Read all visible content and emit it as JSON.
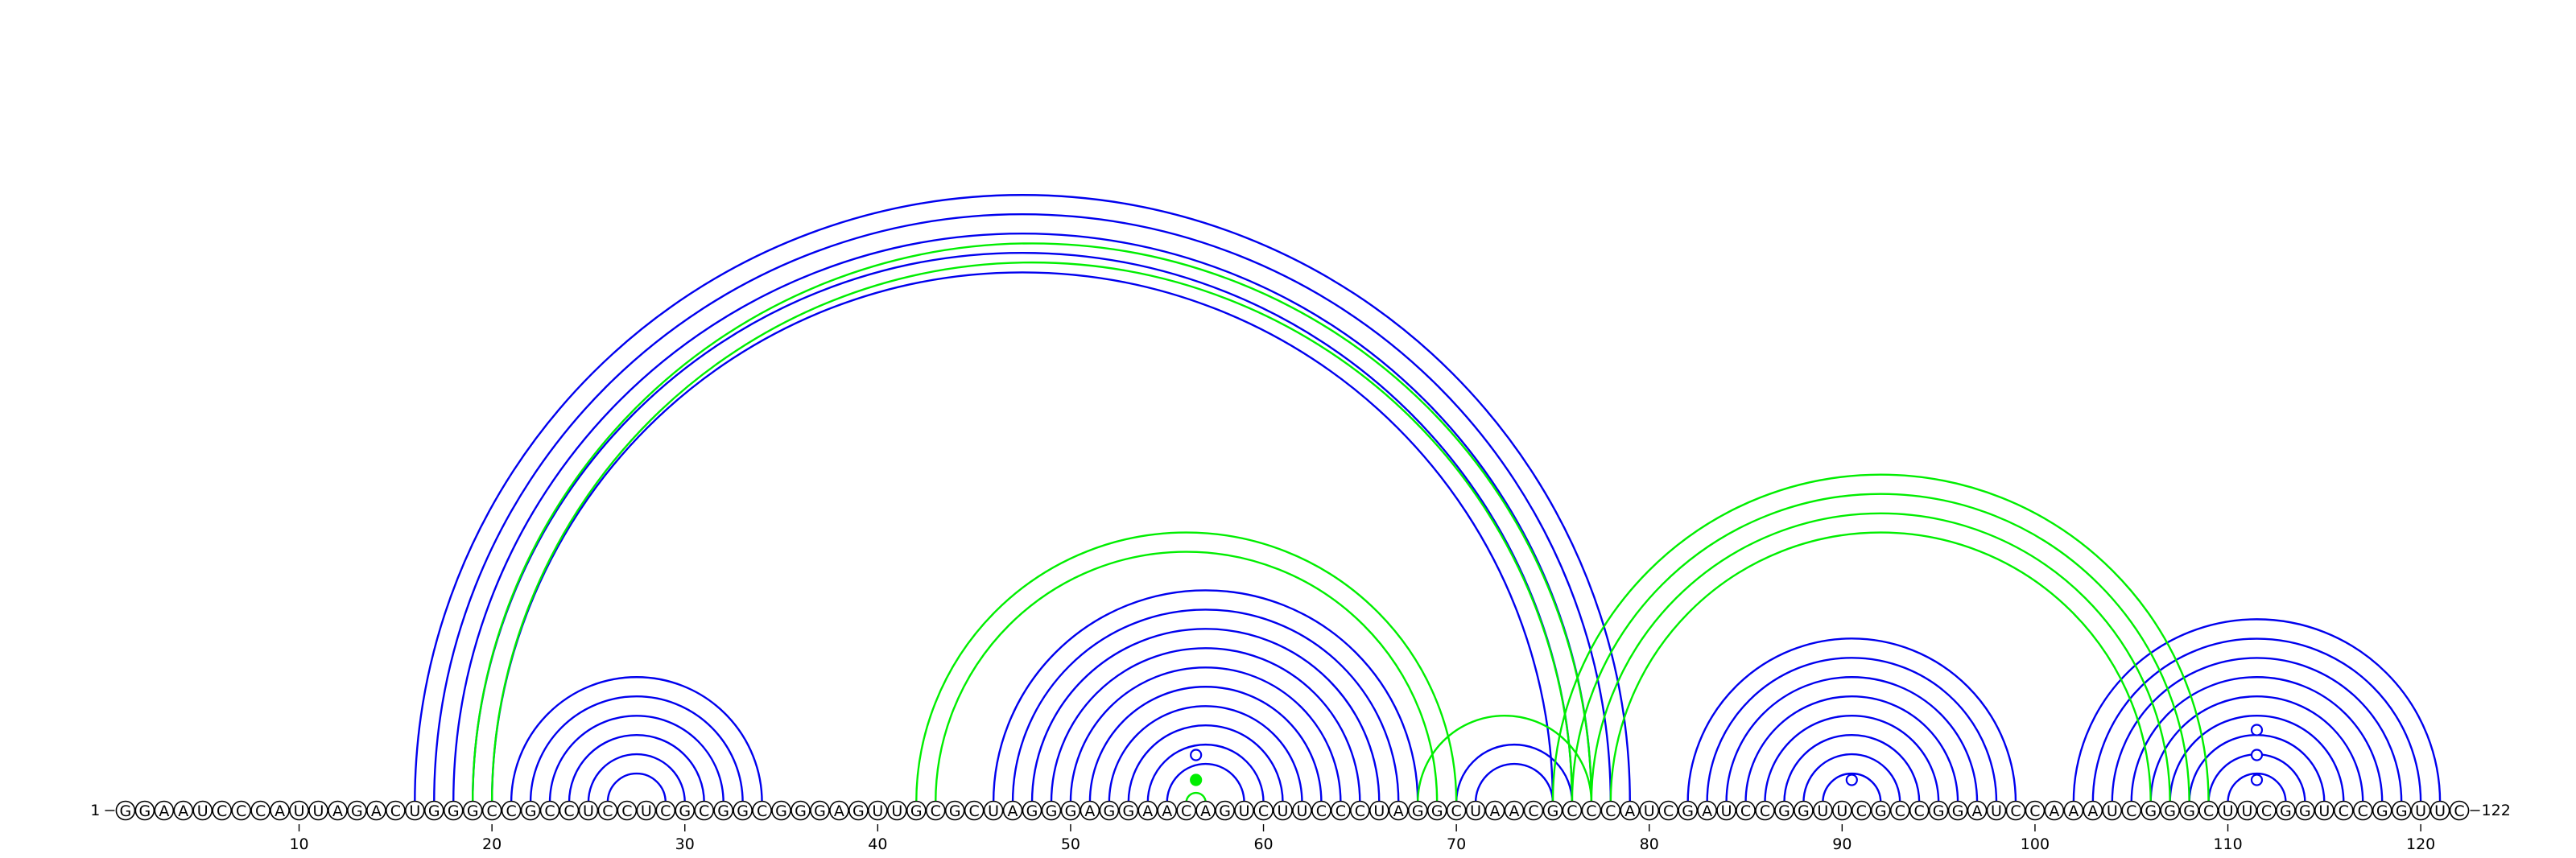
{
  "sequence": "GGAAUCCCAUUAGACUGGGCCGCCUCCUCGCGGCGGGAGUUGCGCUAGGGAGGAACAGUCUUCCCUAGGCUAACGCCCAUCGAUCCGGUUCGCCGGAUCCAAAUCGGGCUUCGGUCCGGUUC",
  "start_label": "1",
  "end_label": "122",
  "ticks": [
    {
      "pos": 10,
      "label": "10"
    },
    {
      "pos": 20,
      "label": "20"
    },
    {
      "pos": 30,
      "label": "30"
    },
    {
      "pos": 40,
      "label": "40"
    },
    {
      "pos": 50,
      "label": "50"
    },
    {
      "pos": 60,
      "label": "60"
    },
    {
      "pos": 70,
      "label": "70"
    },
    {
      "pos": 80,
      "label": "80"
    },
    {
      "pos": 90,
      "label": "90"
    },
    {
      "pos": 100,
      "label": "100"
    },
    {
      "pos": 110,
      "label": "110"
    },
    {
      "pos": 120,
      "label": "120"
    }
  ],
  "colors": {
    "structure_a": "#0000ee",
    "structure_b": "#00ee00",
    "backbone": "#000000"
  },
  "structure_a_pairs": [
    [
      16,
      79
    ],
    [
      17,
      78
    ],
    [
      18,
      77
    ],
    [
      19,
      76
    ],
    [
      20,
      75
    ],
    [
      21,
      34
    ],
    [
      22,
      33
    ],
    [
      23,
      32
    ],
    [
      24,
      31
    ],
    [
      25,
      30
    ],
    [
      26,
      29
    ],
    [
      46,
      68
    ],
    [
      47,
      67
    ],
    [
      48,
      66
    ],
    [
      49,
      65
    ],
    [
      50,
      64
    ],
    [
      51,
      63
    ],
    [
      52,
      62
    ],
    [
      53,
      61
    ],
    [
      54,
      60
    ],
    [
      55,
      59
    ],
    [
      70,
      76
    ],
    [
      71,
      75
    ],
    [
      82,
      99
    ],
    [
      83,
      98
    ],
    [
      84,
      97
    ],
    [
      85,
      96
    ],
    [
      86,
      95
    ],
    [
      87,
      94
    ],
    [
      88,
      93
    ],
    [
      89,
      92
    ],
    [
      102,
      121
    ],
    [
      103,
      120
    ],
    [
      104,
      119
    ],
    [
      105,
      118
    ],
    [
      106,
      117
    ],
    [
      107,
      116
    ],
    [
      108,
      115
    ],
    [
      109,
      114
    ],
    [
      110,
      113
    ]
  ],
  "structure_b_pairs": [
    [
      19,
      77
    ],
    [
      20,
      76
    ],
    [
      42,
      70
    ],
    [
      43,
      69
    ],
    [
      56,
      57
    ],
    [
      68,
      77
    ],
    [
      75,
      109
    ],
    [
      76,
      108
    ],
    [
      77,
      107
    ],
    [
      78,
      106
    ]
  ],
  "unpaired_markers": [
    {
      "pos": 56.5,
      "level": 1,
      "filled": false,
      "structure": "structure_a"
    },
    {
      "pos": 56.5,
      "level": 0,
      "filled": true,
      "structure": "structure_b"
    },
    {
      "pos": 90.5,
      "level": 0,
      "filled": false,
      "structure": "structure_a"
    },
    {
      "pos": 111.5,
      "level": 0,
      "filled": false,
      "structure": "structure_a"
    },
    {
      "pos": 111.5,
      "level": 1,
      "filled": false,
      "structure": "structure_a"
    },
    {
      "pos": 111.5,
      "level": 2,
      "filled": false,
      "structure": "structure_a"
    }
  ]
}
